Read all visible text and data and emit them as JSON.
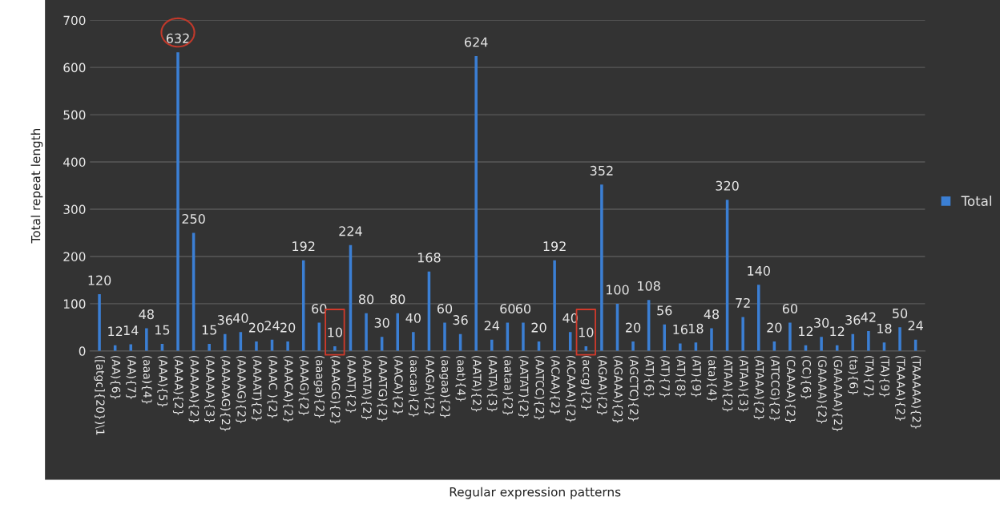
{
  "chart_data": {
    "type": "bar",
    "xlabel": "Regular expression patterns",
    "ylabel": "Total repeat length",
    "categories": [
      "([atgc]{20})\\1",
      "(AA){6}",
      "(AA){7}",
      "(aaa){4}",
      "(AAA){5}",
      "(AAAA){2}",
      "(AAAAA){2}",
      "(AAAAA){3}",
      "(AAAAAG){2}",
      "(AAAAG){2}",
      "(AAAAT){2}",
      "(AAAC ){2}",
      "(AAACA){2}",
      "(AAAG){2}",
      "(aaaga){2}",
      "(AAAGG){2}",
      "(AAAT){2}",
      "(AAATA){2}",
      "(AAATG){2}",
      "(AACA){2}",
      "(aacaa){2}",
      "(AAGA){2}",
      "(aagaa){2}",
      "(aat){4}",
      "(AATA){2}",
      "(AATA){3}",
      "(aataa){2}",
      "(AATAT){2}",
      "(AATCC){2}",
      "(ACAA){2}",
      "(ACAAA){2}",
      "(accg){2}",
      "(AGAA){2}",
      "(AGAAA){2}",
      "(AGCTC){2}",
      "(AT){6}",
      "(AT){7}",
      "(AT){8}",
      "(AT){9}",
      "(ata){4}",
      "(ATAA){2}",
      "(ATAA){3}",
      "(ATAAA){2}",
      "(ATCCG){2}",
      "(CAAAA){2}",
      "(CC){6}",
      "(GAAAA){2}",
      "(GAAAAA){2}",
      "(ta){6}",
      "(TA){7}",
      "(TA){9}",
      "(TAAAA){2}",
      "(TAAAAA){2}"
    ],
    "series": [
      {
        "name": "Total",
        "color": "#3b7fd4",
        "values": [
          120,
          12,
          14,
          48,
          15,
          632,
          250,
          15,
          36,
          40,
          20,
          24,
          20,
          192,
          60,
          10,
          224,
          80,
          30,
          80,
          40,
          168,
          60,
          36,
          624,
          24,
          60,
          60,
          20,
          192,
          40,
          10,
          352,
          100,
          20,
          108,
          56,
          16,
          18,
          48,
          320,
          72,
          140,
          20,
          60,
          12,
          30,
          12,
          36,
          42,
          18,
          50,
          24
        ]
      }
    ],
    "ylim": [
      0,
      700
    ],
    "yticks": [
      0,
      100,
      200,
      300,
      400,
      500,
      600,
      700
    ],
    "grid": "y",
    "legend": "right",
    "data_labels": true
  }
}
